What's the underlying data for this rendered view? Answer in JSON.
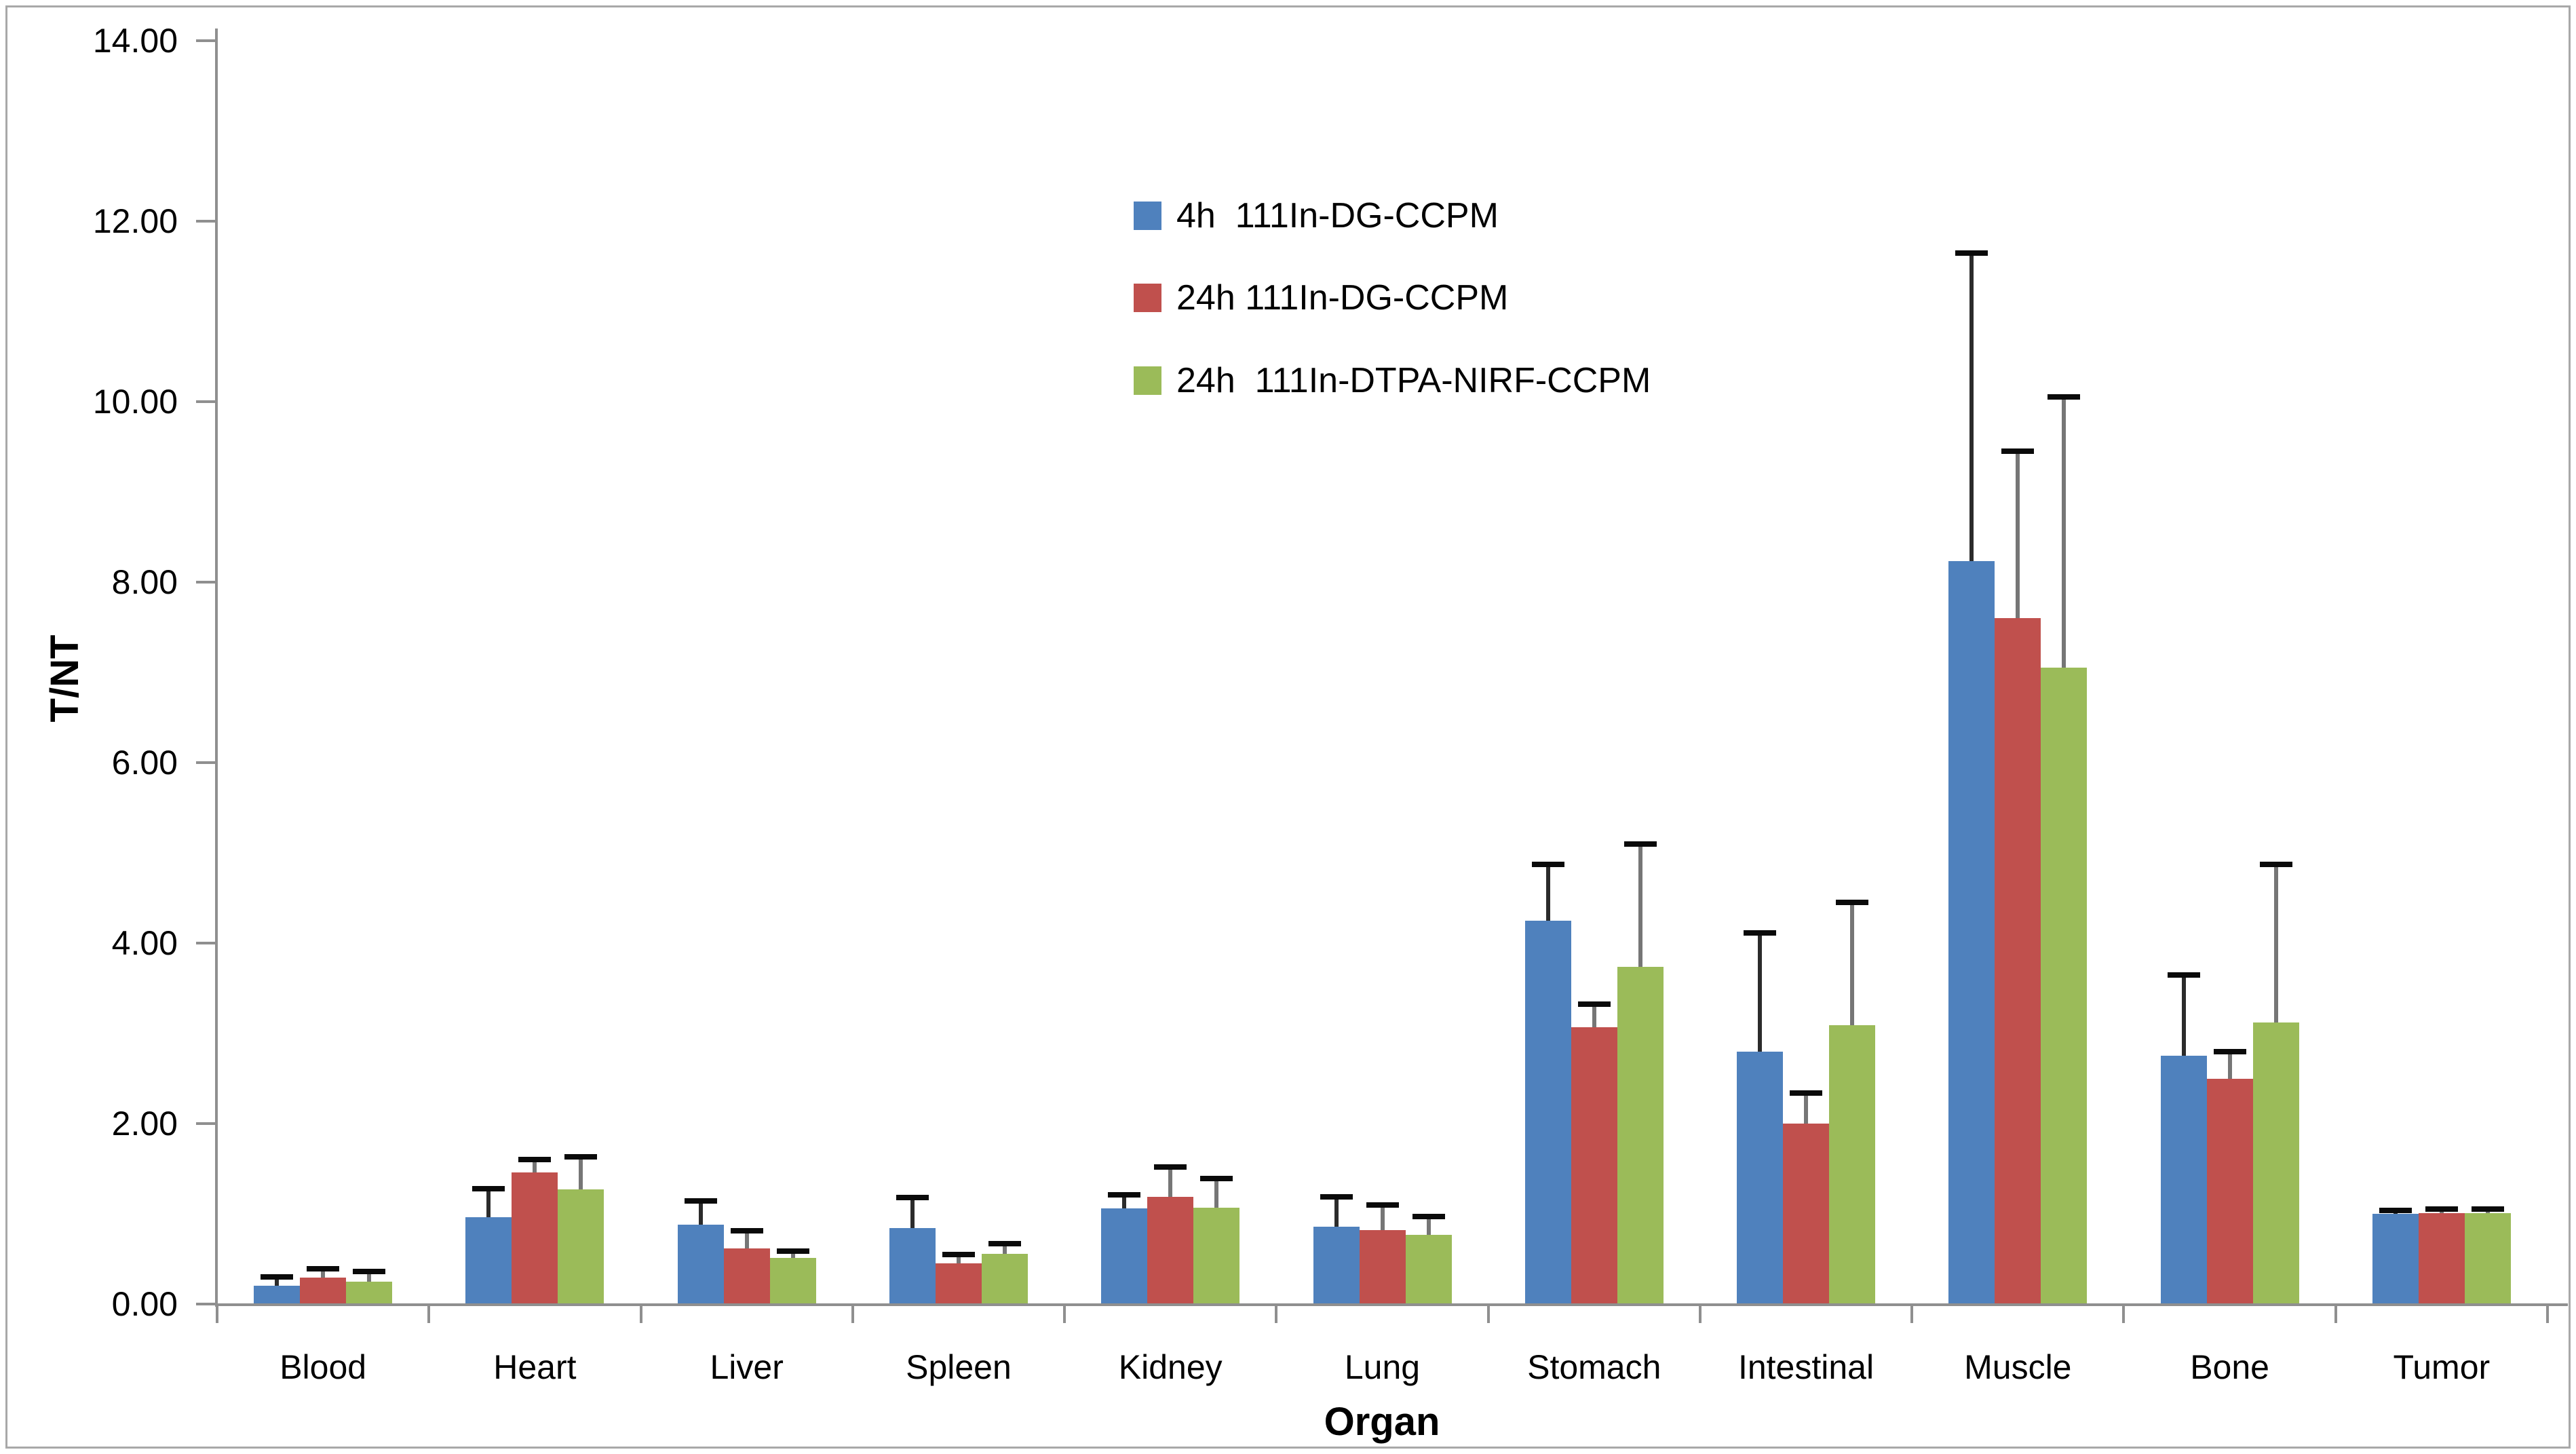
{
  "chart_data": {
    "type": "bar",
    "title": "",
    "xlabel": "Organ",
    "ylabel": "T/NT",
    "ylim": [
      0,
      14
    ],
    "ytick_step": 2,
    "ytick_labels": [
      "0.00",
      "2.00",
      "4.00",
      "6.00",
      "8.00",
      "10.00",
      "12.00",
      "14.00"
    ],
    "grid": false,
    "legend_position": "upper-center",
    "error_bars": "plus-direction",
    "categories": [
      "Blood",
      "Heart",
      "Liver",
      "Spleen",
      "Kidney",
      "Lung",
      "Stomach",
      "Intestinal",
      "Muscle",
      "Bone",
      "Tumor"
    ],
    "series": [
      {
        "name": "4h  111In-DG-CCPM",
        "color": "#4F81BD",
        "error_color": "#2b2b2b",
        "values": [
          0.2,
          0.96,
          0.88,
          0.84,
          1.06,
          0.86,
          4.25,
          2.8,
          8.23,
          2.75,
          1.0
        ],
        "errors": [
          0.1,
          0.32,
          0.26,
          0.34,
          0.15,
          0.33,
          0.62,
          1.31,
          3.42,
          0.9,
          0.04
        ]
      },
      {
        "name": "24h 111In-DG-CCPM",
        "color": "#C0504D",
        "error_color": "#767676",
        "values": [
          0.29,
          1.46,
          0.62,
          0.45,
          1.19,
          0.82,
          3.07,
          2.0,
          7.6,
          2.5,
          1.01
        ],
        "errors": [
          0.1,
          0.14,
          0.19,
          0.1,
          0.33,
          0.28,
          0.25,
          0.34,
          1.85,
          0.3,
          0.04
        ]
      },
      {
        "name": "24h  111In-DTPA-NIRF-CCPM",
        "color": "#9BBB59",
        "error_color": "#767676",
        "values": [
          0.25,
          1.27,
          0.51,
          0.56,
          1.07,
          0.77,
          3.74,
          3.09,
          7.05,
          3.12,
          1.01
        ],
        "errors": [
          0.11,
          0.36,
          0.08,
          0.11,
          0.32,
          0.2,
          1.36,
          1.36,
          3.0,
          1.75,
          0.04
        ]
      }
    ],
    "error_cap_color": "#0a0a0a"
  }
}
